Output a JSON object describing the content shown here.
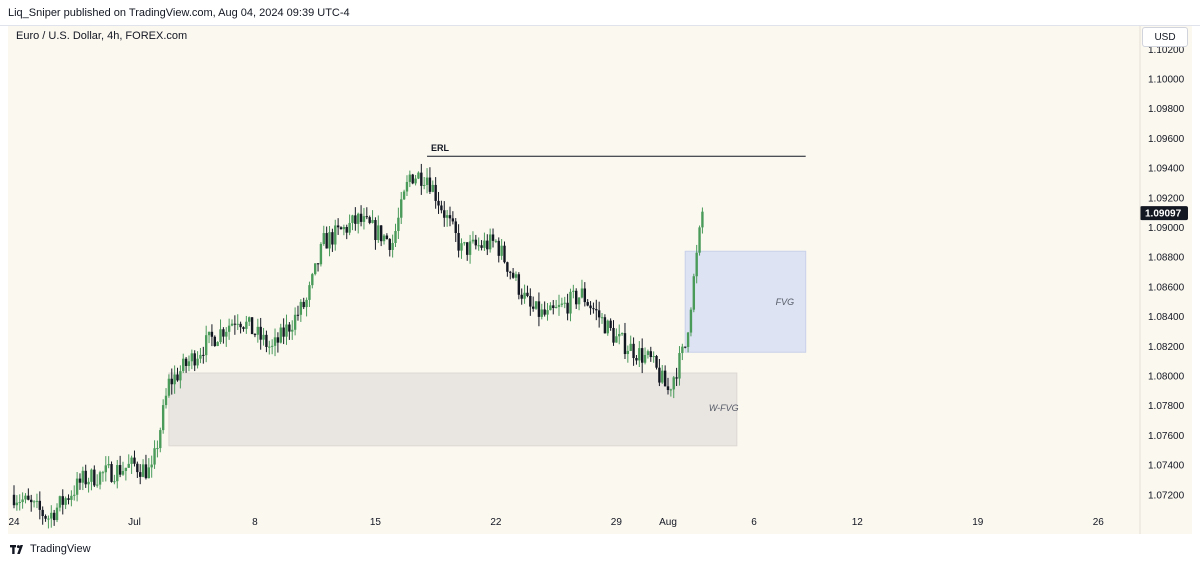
{
  "header": {
    "published_text": "Liq_Sniper published on TradingView.com, Aug 04, 2024 09:39 UTC-4",
    "symbol_text": "Euro / U.S. Dollar, 4h, FOREX.com",
    "currency_button": "USD"
  },
  "footer": {
    "brand": "TradingView"
  },
  "colors": {
    "up": "#4a9a5a",
    "down": "#131722",
    "fvg": "#dde3f2",
    "wfvg": "#e9e5e1",
    "background": "#fbf8f0"
  },
  "chart_data": {
    "type": "candlestick",
    "symbol": "Euro / U.S. Dollar",
    "interval": "4h",
    "source": "FOREX.com",
    "y_ticks": [
      "1.10200",
      "1.10000",
      "1.09800",
      "1.09600",
      "1.09400",
      "1.09200",
      "1.09000",
      "1.08800",
      "1.08600",
      "1.08400",
      "1.08200",
      "1.08000",
      "1.07800",
      "1.07600",
      "1.07400",
      "1.07200"
    ],
    "y_range": [
      1.0705,
      1.103
    ],
    "x_ticks": [
      {
        "label": "24",
        "date": "2024-06-24"
      },
      {
        "label": "Jul",
        "date": "2024-07-01"
      },
      {
        "label": "8",
        "date": "2024-07-08"
      },
      {
        "label": "15",
        "date": "2024-07-15"
      },
      {
        "label": "22",
        "date": "2024-07-22"
      },
      {
        "label": "29",
        "date": "2024-07-29"
      },
      {
        "label": "Aug",
        "date": "2024-08-01"
      },
      {
        "label": "6",
        "date": "2024-08-06"
      },
      {
        "label": "12",
        "date": "2024-08-12"
      },
      {
        "label": "19",
        "date": "2024-08-19"
      },
      {
        "label": "26",
        "date": "2024-08-26"
      }
    ],
    "last_price": "1.09097",
    "anchors": [
      {
        "date": "2024-06-24",
        "price": 1.072
      },
      {
        "date": "2024-06-26",
        "price": 1.0705
      },
      {
        "date": "2024-06-28",
        "price": 1.073
      },
      {
        "date": "2024-07-01",
        "price": 1.074
      },
      {
        "date": "2024-07-02",
        "price": 1.0735
      },
      {
        "date": "2024-07-03",
        "price": 1.0795
      },
      {
        "date": "2024-07-05",
        "price": 1.082
      },
      {
        "date": "2024-07-07",
        "price": 1.084
      },
      {
        "date": "2024-07-09",
        "price": 1.0818
      },
      {
        "date": "2024-07-11",
        "price": 1.085
      },
      {
        "date": "2024-07-12",
        "price": 1.089
      },
      {
        "date": "2024-07-14",
        "price": 1.0905
      },
      {
        "date": "2024-07-16",
        "price": 1.089
      },
      {
        "date": "2024-07-17",
        "price": 1.0935
      },
      {
        "date": "2024-07-18",
        "price": 1.0935
      },
      {
        "date": "2024-07-20",
        "price": 1.0885
      },
      {
        "date": "2024-07-22",
        "price": 1.089
      },
      {
        "date": "2024-07-24",
        "price": 1.0845
      },
      {
        "date": "2024-07-25",
        "price": 1.084
      },
      {
        "date": "2024-07-27",
        "price": 1.0855
      },
      {
        "date": "2024-07-29",
        "price": 1.0825
      },
      {
        "date": "2024-07-31",
        "price": 1.081
      },
      {
        "date": "2024-08-01",
        "price": 1.079
      },
      {
        "date": "2024-08-02",
        "price": 1.082
      },
      {
        "date": "2024-08-03",
        "price": 1.091
      }
    ],
    "annotations": [
      {
        "label": "ERL",
        "type": "line",
        "price": 1.0948,
        "from": "2024-07-18",
        "to": "2024-08-09"
      },
      {
        "label": "FVG",
        "type": "zone",
        "from": "2024-08-02",
        "to": "2024-08-09",
        "low": 1.0816,
        "high": 1.0884
      },
      {
        "label": "W-FVG",
        "type": "zone",
        "from": "2024-07-03",
        "to": "2024-08-05",
        "low": 1.0753,
        "high": 1.0802
      }
    ]
  }
}
